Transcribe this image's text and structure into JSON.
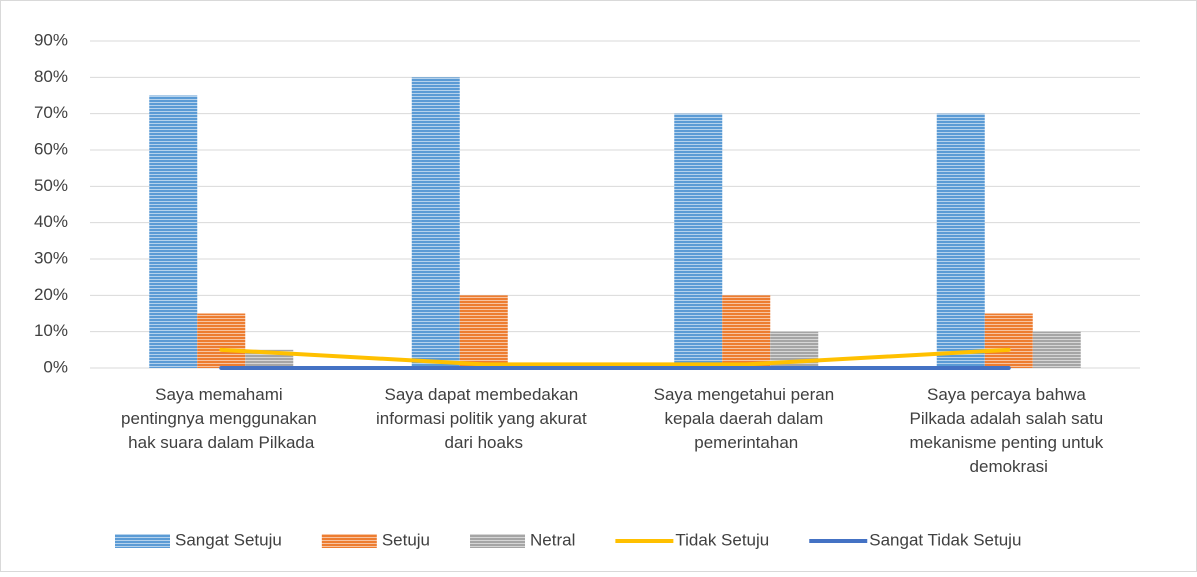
{
  "chart_data": {
    "type": "bar",
    "categories": [
      "Saya memahami pentingnya menggunakan hak suara dalam Pilkada",
      "Saya dapat membedakan informasi politik yang akurat dari hoaks",
      "Saya mengetahui peran kepala daerah dalam pemerintahan",
      "Saya percaya bahwa Pilkada adalah salah satu mekanisme penting untuk demokrasi"
    ],
    "series": [
      {
        "name": "Sangat Setuju",
        "color": "#5b9bd5",
        "type": "bar",
        "values": [
          75,
          80,
          70,
          70
        ]
      },
      {
        "name": "Setuju",
        "color": "#ed7d31",
        "type": "bar",
        "values": [
          15,
          20,
          20,
          15
        ]
      },
      {
        "name": "Netral",
        "color": "#a5a5a5",
        "type": "bar",
        "values": [
          5,
          0,
          10,
          10
        ]
      },
      {
        "name": "Tidak Setuju",
        "color": "#ffc000",
        "type": "line",
        "values": [
          5,
          1,
          1,
          5
        ]
      },
      {
        "name": "Sangat Tidak Setuju",
        "color": "#4472c4",
        "type": "line",
        "values": [
          0,
          0,
          0,
          0
        ]
      }
    ],
    "ylim": [
      0,
      90
    ],
    "yticks": [
      {
        "value": 0,
        "label": "0%"
      },
      {
        "value": 10,
        "label": "10%"
      },
      {
        "value": 20,
        "label": "20%"
      },
      {
        "value": 30,
        "label": "30%"
      },
      {
        "value": 40,
        "label": "40%"
      },
      {
        "value": 50,
        "label": "50%"
      },
      {
        "value": 60,
        "label": "60%"
      },
      {
        "value": 70,
        "label": "70%"
      },
      {
        "value": 80,
        "label": "80%"
      },
      {
        "value": 90,
        "label": "90%"
      }
    ],
    "grid": true,
    "legend": "bottom"
  }
}
